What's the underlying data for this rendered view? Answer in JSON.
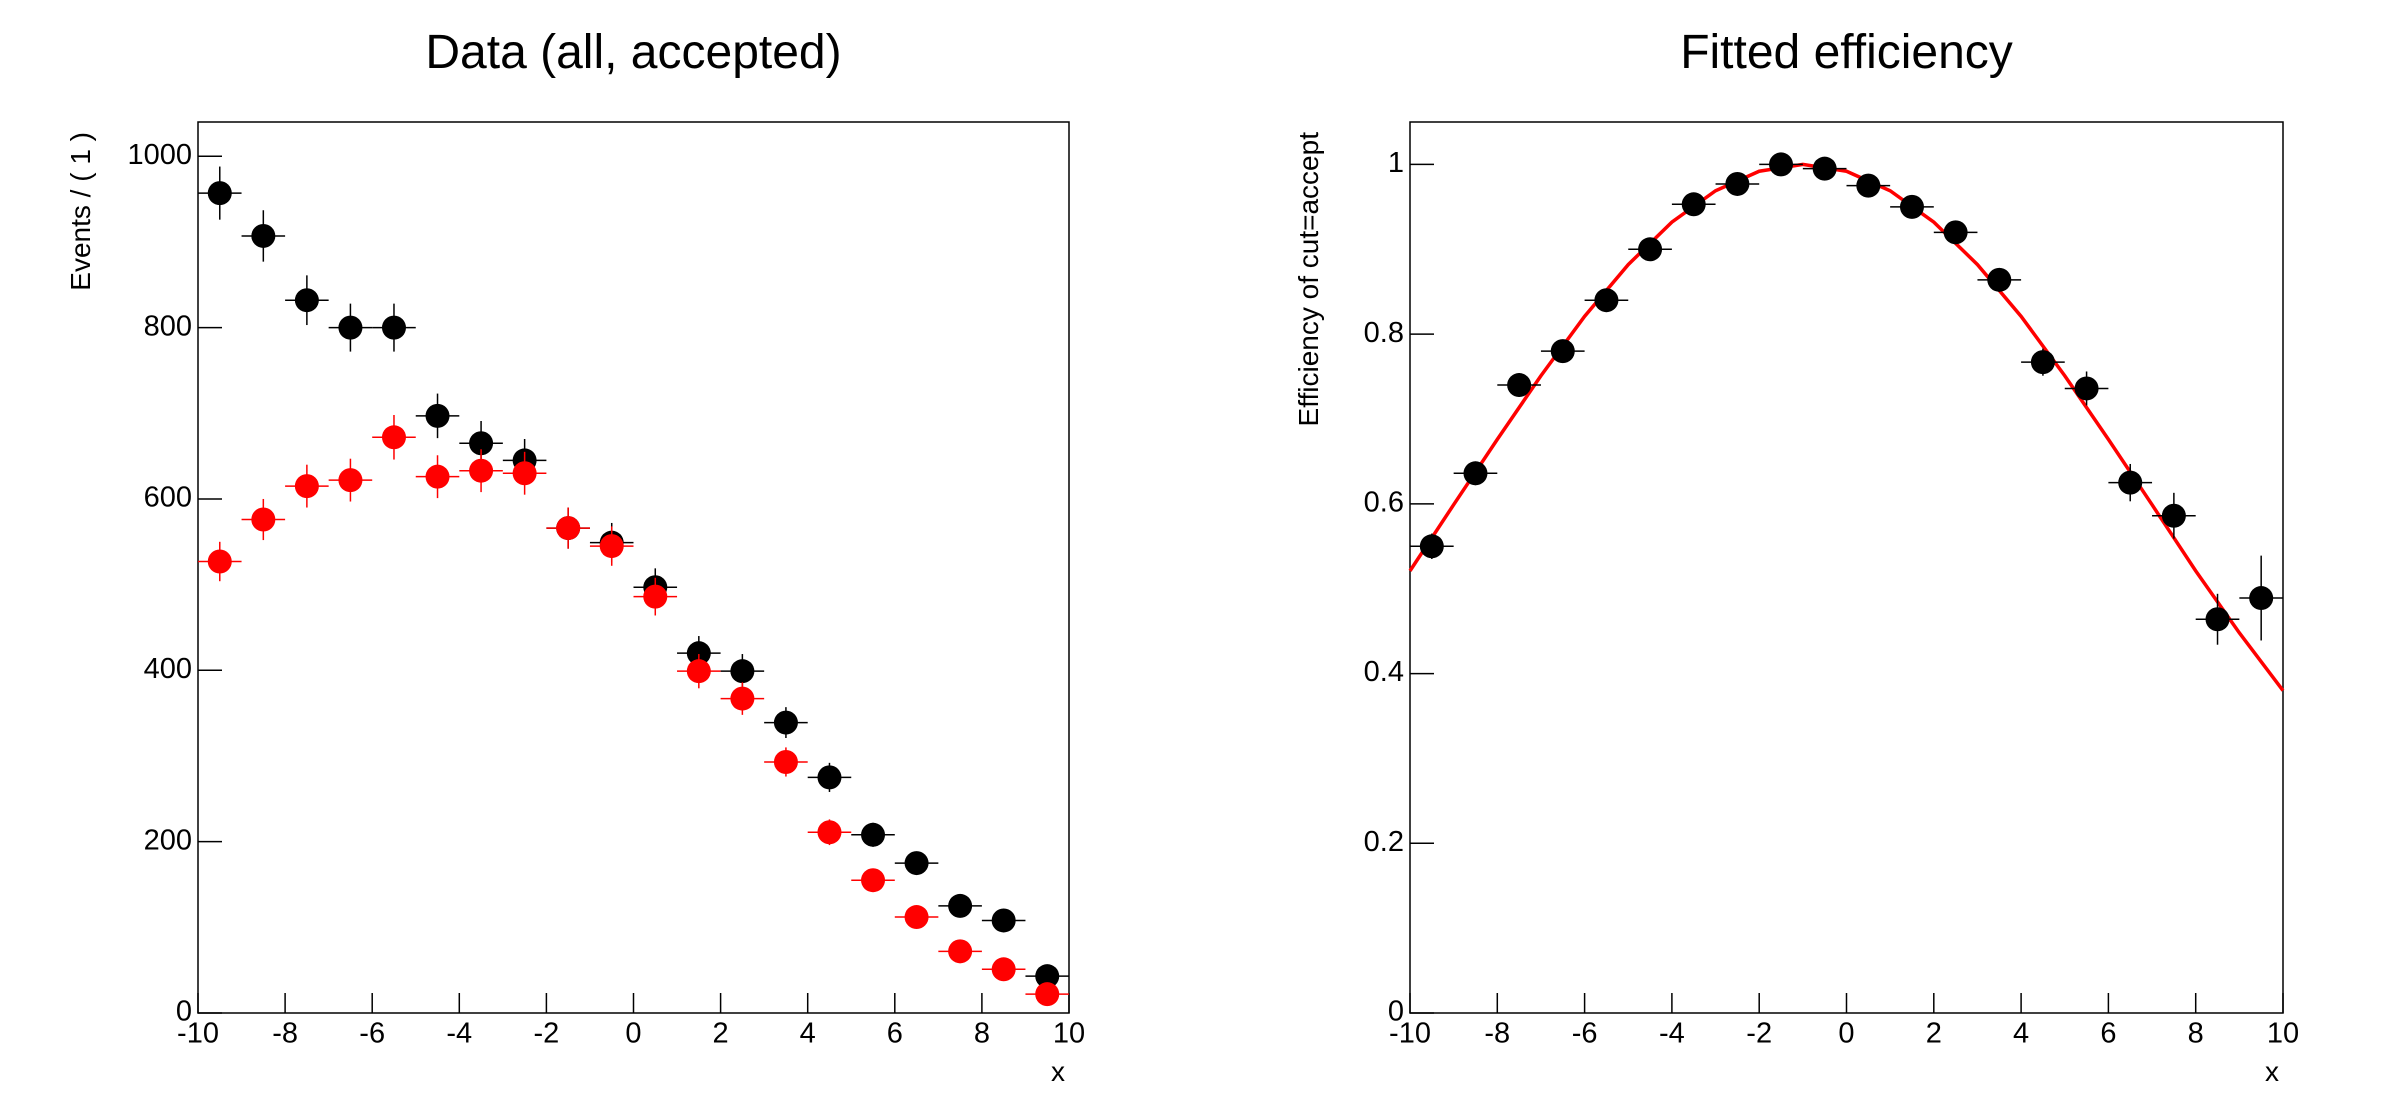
{
  "chart_data": [
    {
      "type": "errorbar",
      "title": "Data (all, accepted)",
      "x_label": "x",
      "y_label": "Events / ( 1 )",
      "xlim": [
        -10,
        10
      ],
      "ylim": [
        0,
        1040
      ],
      "xticks": [
        -10,
        -8,
        -6,
        -4,
        -2,
        0,
        2,
        4,
        6,
        8,
        10
      ],
      "yticks": [
        0,
        200,
        400,
        600,
        800,
        1000
      ],
      "x": [
        -9.5,
        -8.5,
        -7.5,
        -6.5,
        -5.5,
        -4.5,
        -3.5,
        -2.5,
        -1.5,
        -0.5,
        0.5,
        1.5,
        2.5,
        3.5,
        4.5,
        5.5,
        6.5,
        7.5,
        8.5,
        9.5
      ],
      "xerr": 0.5,
      "series": [
        {
          "color": "#000000",
          "values": [
            957,
            907,
            832,
            800,
            800,
            697,
            665,
            645,
            566,
            549,
            497,
            420,
            399,
            339,
            275,
            208,
            175,
            125,
            108,
            43
          ],
          "errors": [
            31,
            30,
            29,
            28,
            28,
            26,
            26,
            25,
            24,
            23,
            22,
            20,
            20,
            18,
            17,
            14,
            13,
            11,
            10,
            7
          ]
        },
        {
          "color": "#ff0000",
          "values": [
            527,
            576,
            615,
            622,
            672,
            626,
            633,
            630,
            566,
            545,
            486,
            399,
            367,
            293,
            211,
            155,
            112,
            72,
            51,
            22
          ],
          "errors": [
            23,
            24,
            25,
            25,
            26,
            25,
            25,
            25,
            24,
            23,
            22,
            20,
            19,
            17,
            15,
            12,
            11,
            8,
            7,
            5
          ]
        }
      ]
    },
    {
      "type": "errorbar",
      "title": "Fitted efficiency",
      "x_label": "x",
      "y_label": "Efficiency of cut=accept",
      "xlim": [
        -10,
        10
      ],
      "ylim": [
        0,
        1.05
      ],
      "xticks": [
        -10,
        -8,
        -6,
        -4,
        -2,
        0,
        2,
        4,
        6,
        8,
        10
      ],
      "yticks": [
        0,
        0.2,
        0.4,
        0.6,
        0.8,
        1
      ],
      "x": [
        -9.5,
        -8.5,
        -7.5,
        -6.5,
        -5.5,
        -4.5,
        -3.5,
        -2.5,
        -1.5,
        -0.5,
        0.5,
        1.5,
        2.5,
        3.5,
        4.5,
        5.5,
        6.5,
        7.5,
        8.5,
        9.5
      ],
      "xerr": 0.5,
      "series": [
        {
          "color": "#000000",
          "values": [
            0.55,
            0.636,
            0.74,
            0.78,
            0.84,
            0.9,
            0.953,
            0.977,
            1.0,
            0.995,
            0.975,
            0.95,
            0.92,
            0.864,
            0.767,
            0.736,
            0.625,
            0.586,
            0.464,
            0.489
          ],
          "errors": [
            0.015,
            0.014,
            0.014,
            0.013,
            0.012,
            0.011,
            0.009,
            0.007,
            0.003,
            0.005,
            0.008,
            0.01,
            0.012,
            0.014,
            0.016,
            0.02,
            0.022,
            0.027,
            0.03,
            0.05
          ]
        }
      ],
      "fit": {
        "color": "#ff0000",
        "x": [
          -10,
          -9,
          -8,
          -7,
          -6,
          -5,
          -4,
          -3,
          -2,
          -1,
          0,
          1,
          2,
          3,
          4,
          5,
          6,
          7,
          8,
          9,
          10
        ],
        "values": [
          0.521,
          0.599,
          0.676,
          0.751,
          0.821,
          0.882,
          0.932,
          0.969,
          0.992,
          1.0,
          0.992,
          0.969,
          0.932,
          0.882,
          0.821,
          0.751,
          0.676,
          0.599,
          0.521,
          0.448,
          0.38
        ]
      }
    }
  ]
}
